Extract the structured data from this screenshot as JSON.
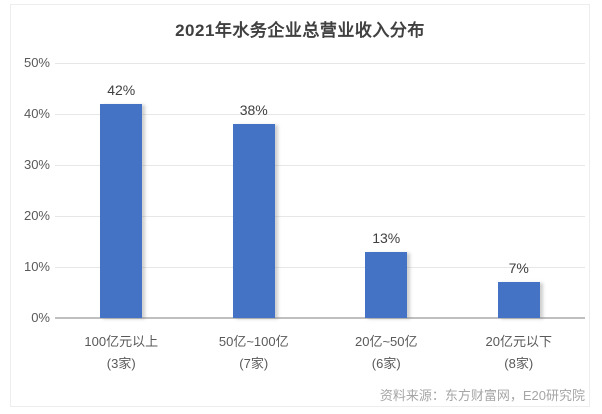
{
  "title": "2021年水务企业总营业收入分布",
  "source_note": "资料来源：东方财富网，E20研究院",
  "colors": {
    "bar": "#4472c4",
    "title_text": "#404040",
    "axis_text": "#595959",
    "value_label_text": "#404040",
    "gridline": "#e7e7e7",
    "baseline": "#bfbfbf",
    "source_text": "#a6a6a6",
    "frame_border": "#ededed",
    "background": "#ffffff"
  },
  "chart_data": {
    "type": "bar",
    "title": "2021年水务企业总营业收入分布",
    "categories": [
      "100亿元以上",
      "50亿~100亿",
      "20亿~50亿",
      "20亿元以下"
    ],
    "category_counts": [
      "(3家)",
      "(7家)",
      "(6家)",
      "(8家)"
    ],
    "values": [
      42,
      38,
      13,
      7
    ],
    "value_labels": [
      "42%",
      "38%",
      "13%",
      "7%"
    ],
    "xlabel": "",
    "ylabel": "",
    "ylim": [
      0,
      50
    ],
    "yticks": [
      0,
      10,
      20,
      30,
      40,
      50
    ],
    "ytick_labels": [
      "0%",
      "10%",
      "20%",
      "30%",
      "40%",
      "50%"
    ],
    "grid": true,
    "legend": false,
    "annotation_source": "资料来源：东方财富网，E20研究院"
  }
}
